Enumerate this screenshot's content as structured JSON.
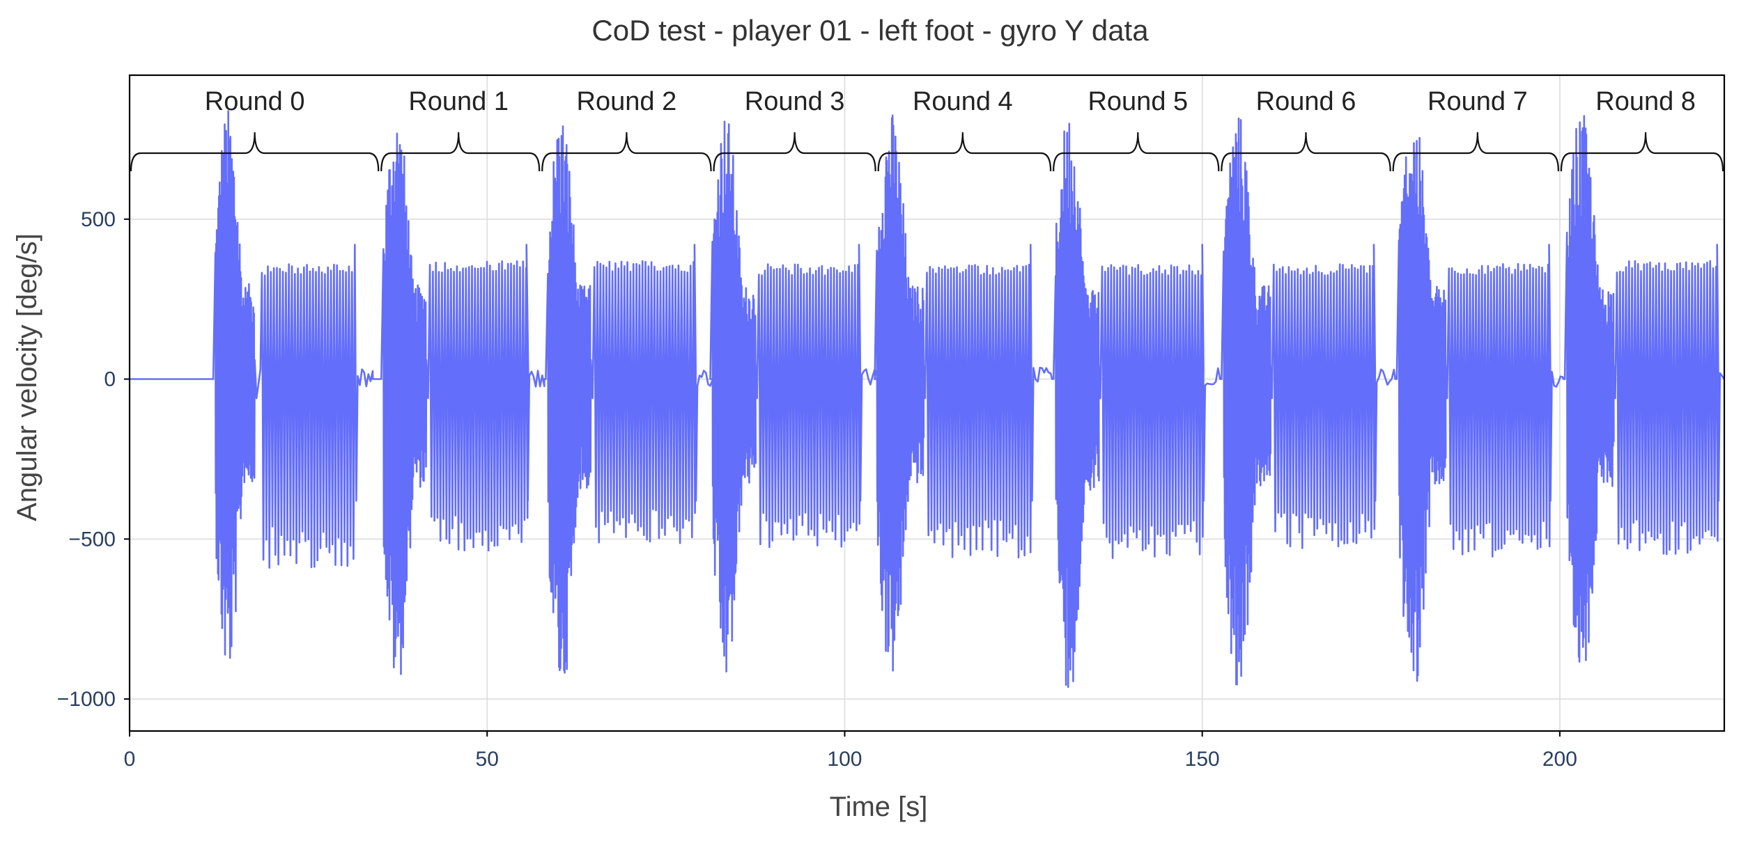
{
  "chart_data": {
    "type": "line",
    "title": "CoD test - player 01 - left foot - gyro Y data",
    "xlabel": "Time [s]",
    "ylabel": "Angular velocity [deg/s]",
    "xlim": [
      0,
      223
    ],
    "ylim": [
      -1100,
      950
    ],
    "xticks": [
      0,
      50,
      100,
      150,
      200
    ],
    "yticks": [
      -1000,
      -500,
      0,
      500
    ],
    "grid": true,
    "legend": "none",
    "line_color": "#636efa",
    "rounds": [
      {
        "label": "Round 0",
        "start": 0,
        "mid": 17.5,
        "end": 35
      },
      {
        "label": "Round 1",
        "start": 35,
        "mid": 46,
        "end": 57.5
      },
      {
        "label": "Round 2",
        "start": 57.5,
        "mid": 69.5,
        "end": 81.5
      },
      {
        "label": "Round 3",
        "start": 81.5,
        "mid": 93,
        "end": 104.5
      },
      {
        "label": "Round 4",
        "start": 104.5,
        "mid": 116.5,
        "end": 129
      },
      {
        "label": "Round 5",
        "start": 129,
        "mid": 141,
        "end": 152.5
      },
      {
        "label": "Round 6",
        "start": 152.5,
        "mid": 164.5,
        "end": 176.5
      },
      {
        "label": "Round 7",
        "start": 176.5,
        "mid": 188.5,
        "end": 200
      },
      {
        "label": "Round 8",
        "start": 200,
        "mid": 212,
        "end": 223
      }
    ],
    "bursts": [
      {
        "sprint": [
          12,
          17.5
        ],
        "sprint_max": 850,
        "sprint_min": -940,
        "run": [
          18.5,
          31.5
        ],
        "run_max": 360,
        "run_min": -590,
        "settle": [
          31.5,
          34
        ]
      },
      {
        "sprint": [
          35.5,
          41.5
        ],
        "sprint_max": 840,
        "sprint_min": -970,
        "run": [
          42,
          55.5
        ],
        "run_max": 370,
        "run_min": -540,
        "settle": [
          55.5,
          58
        ]
      },
      {
        "sprint": [
          58.5,
          64.5
        ],
        "sprint_max": 840,
        "sprint_min": -990,
        "run": [
          65,
          79
        ],
        "run_max": 370,
        "run_min": -520,
        "settle": [
          79,
          81.5
        ]
      },
      {
        "sprint": [
          81.5,
          87.5
        ],
        "sprint_max": 840,
        "sprint_min": -960,
        "run": [
          88,
          102
        ],
        "run_max": 360,
        "run_min": -530,
        "settle": [
          102,
          104.5
        ]
      },
      {
        "sprint": [
          104.5,
          111
        ],
        "sprint_max": 840,
        "sprint_min": -940,
        "run": [
          111.5,
          126
        ],
        "run_max": 360,
        "run_min": -560,
        "settle": [
          126,
          129
        ]
      },
      {
        "sprint": [
          129.5,
          135.5
        ],
        "sprint_max": 840,
        "sprint_min": -990,
        "run": [
          136,
          150
        ],
        "run_max": 360,
        "run_min": -560,
        "settle": [
          150,
          152.5
        ]
      },
      {
        "sprint": [
          153,
          159.5
        ],
        "sprint_max": 840,
        "sprint_min": -980,
        "run": [
          160,
          174
        ],
        "run_max": 360,
        "run_min": -530,
        "settle": [
          174,
          177
        ]
      },
      {
        "sprint": [
          177.5,
          184
        ],
        "sprint_max": 840,
        "sprint_min": -980,
        "run": [
          184.5,
          198.5
        ],
        "run_max": 360,
        "run_min": -560,
        "settle": [
          198.5,
          200.5
        ]
      },
      {
        "sprint": [
          201,
          207.5
        ],
        "sprint_max": 840,
        "sprint_min": -960,
        "run": [
          208,
          222
        ],
        "run_max": 370,
        "run_min": -550,
        "settle": [
          222,
          223
        ]
      }
    ]
  }
}
